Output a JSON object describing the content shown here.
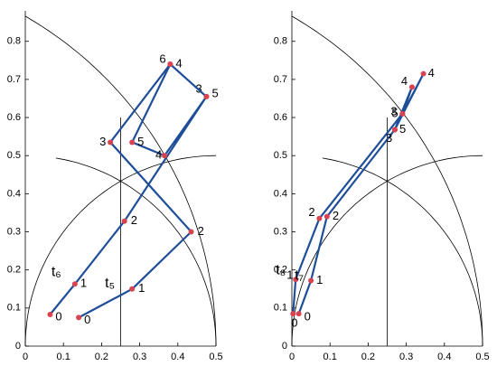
{
  "chart_data": [
    {
      "type": "line",
      "xlim": [
        0,
        0.5
      ],
      "ylim": [
        0,
        0.88
      ],
      "xticks": [
        0,
        0.1,
        0.2,
        0.3,
        0.4,
        0.5
      ],
      "yticks": [
        0,
        0.1,
        0.2,
        0.3,
        0.4,
        0.5,
        0.6,
        0.7,
        0.8
      ],
      "series": [
        {
          "name": "t₆",
          "color": "#1f4e99",
          "marker_color": "#d9434f",
          "x": [
            0.065,
            0.13,
            0.26,
            0.475,
            0.365,
            0.28,
            0.38
          ],
          "values": [
            0.083,
            0.163,
            0.328,
            0.655,
            0.5,
            0.535,
            0.74
          ],
          "labels": [
            "0",
            "1",
            "2",
            "3",
            "4",
            "5",
            "6"
          ]
        },
        {
          "name": "t₅",
          "color": "#1f4e99",
          "marker_color": "#d9434f",
          "x": [
            0.14,
            0.28,
            0.435,
            0.223,
            0.38,
            0.475
          ],
          "values": [
            0.075,
            0.15,
            0.3,
            0.535,
            0.74,
            0.655
          ],
          "labels": [
            "0",
            "1",
            "2",
            "3",
            "4",
            "5"
          ]
        }
      ]
    },
    {
      "type": "line",
      "xlim": [
        0,
        0.5
      ],
      "ylim": [
        0,
        0.88
      ],
      "xticks": [
        0,
        0.1,
        0.2,
        0.3,
        0.4,
        0.5
      ],
      "yticks": [
        0,
        0.1,
        0.2,
        0.3,
        0.4,
        0.5,
        0.6,
        0.7,
        0.8
      ],
      "series": [
        {
          "name": "t₈",
          "color": "#1f4e99",
          "marker_color": "#d9434f",
          "x": [
            0.003,
            0.01,
            0.072,
            0.29,
            0.345,
            0.27
          ],
          "values": [
            0.085,
            0.175,
            0.335,
            0.61,
            0.715,
            0.568
          ],
          "labels": [
            "0",
            "1",
            "2",
            "3",
            "4",
            "5"
          ]
        },
        {
          "name": "t₇",
          "color": "#1f4e99",
          "marker_color": "#d9434f",
          "x": [
            0.018,
            0.05,
            0.092,
            0.27,
            0.315,
            0.29
          ],
          "values": [
            0.085,
            0.172,
            0.34,
            0.568,
            0.68,
            0.61
          ],
          "labels": [
            "0",
            "1",
            "2",
            "3",
            "4",
            "5"
          ]
        }
      ]
    }
  ]
}
